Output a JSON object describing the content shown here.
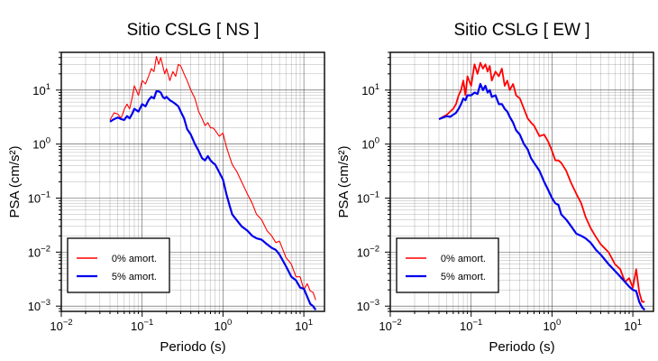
{
  "chart_data": [
    {
      "type": "line",
      "title": "Sitio CSLG [ NS ]",
      "xlabel": "Periodo (s)",
      "ylabel": "PSA (cm/s²)",
      "xscale": "log",
      "yscale": "log",
      "xlim": [
        0.01,
        18
      ],
      "ylim": [
        0.0008,
        50
      ],
      "xticks": [
        {
          "value": 0.01,
          "base": "10",
          "exp": "−2"
        },
        {
          "value": 0.1,
          "base": "10",
          "exp": "−1"
        },
        {
          "value": 1,
          "base": "10",
          "exp": "0"
        },
        {
          "value": 10,
          "base": "10",
          "exp": "1"
        }
      ],
      "yticks": [
        {
          "value": 0.001,
          "base": "10",
          "exp": "−3"
        },
        {
          "value": 0.01,
          "base": "10",
          "exp": "−2"
        },
        {
          "value": 0.1,
          "base": "10",
          "exp": "−1"
        },
        {
          "value": 1,
          "base": "10",
          "exp": "0"
        },
        {
          "value": 10,
          "base": "10",
          "exp": "1"
        }
      ],
      "grid": true,
      "legend_position": "bottom-left",
      "series": [
        {
          "name": "0% amort.",
          "color": "#ff0000",
          "x": [
            0.04,
            0.045,
            0.05,
            0.055,
            0.06,
            0.065,
            0.07,
            0.075,
            0.08,
            0.09,
            0.1,
            0.11,
            0.12,
            0.13,
            0.14,
            0.15,
            0.16,
            0.17,
            0.18,
            0.19,
            0.2,
            0.22,
            0.24,
            0.26,
            0.28,
            0.3,
            0.33,
            0.36,
            0.4,
            0.45,
            0.5,
            0.55,
            0.6,
            0.65,
            0.7,
            0.75,
            0.8,
            0.9,
            1.0,
            1.1,
            1.2,
            1.3,
            1.5,
            1.7,
            2.0,
            2.3,
            2.6,
            3.0,
            3.5,
            4.0,
            4.5,
            5.0,
            6.0,
            7.0,
            8.0,
            9.0,
            10.0,
            11.0,
            12.0,
            13.0,
            14.0
          ],
          "y": [
            2.8,
            3.8,
            3.6,
            3.0,
            4.4,
            5.5,
            4.5,
            7.0,
            12.0,
            8.0,
            15.0,
            13.0,
            18.0,
            25.0,
            22.0,
            42.0,
            30.0,
            40.0,
            28.0,
            20.0,
            25.0,
            15.0,
            22.0,
            18.0,
            30.0,
            28.0,
            20.0,
            15.0,
            10.0,
            7.0,
            4.0,
            3.0,
            2.2,
            2.5,
            2.0,
            2.0,
            1.8,
            1.4,
            1.6,
            0.9,
            0.6,
            0.42,
            0.3,
            0.2,
            0.12,
            0.08,
            0.05,
            0.04,
            0.025,
            0.02,
            0.015,
            0.016,
            0.008,
            0.006,
            0.0035,
            0.0035,
            0.002,
            0.0026,
            0.0019,
            0.0018,
            0.0013
          ]
        },
        {
          "name": "5% amort.",
          "color": "#0000ee",
          "x": [
            0.04,
            0.045,
            0.05,
            0.055,
            0.06,
            0.065,
            0.07,
            0.075,
            0.08,
            0.09,
            0.1,
            0.11,
            0.12,
            0.13,
            0.14,
            0.15,
            0.16,
            0.17,
            0.18,
            0.19,
            0.2,
            0.22,
            0.24,
            0.26,
            0.28,
            0.3,
            0.33,
            0.36,
            0.4,
            0.45,
            0.5,
            0.55,
            0.6,
            0.65,
            0.7,
            0.75,
            0.8,
            0.9,
            1.0,
            1.1,
            1.2,
            1.3,
            1.5,
            1.7,
            2.0,
            2.3,
            2.6,
            3.0,
            3.5,
            4.0,
            4.5,
            5.0,
            6.0,
            7.0,
            8.0,
            9.0,
            10.0,
            11.0,
            12.0,
            13.0,
            14.0
          ],
          "y": [
            2.6,
            2.9,
            3.1,
            2.9,
            2.8,
            3.3,
            3.0,
            3.6,
            4.5,
            4.0,
            5.5,
            5.0,
            6.5,
            7.5,
            7.0,
            9.5,
            9.5,
            9.0,
            7.5,
            7.0,
            7.5,
            6.5,
            6.0,
            5.5,
            5.0,
            4.0,
            3.0,
            1.9,
            1.5,
            1.0,
            0.75,
            0.55,
            0.5,
            0.6,
            0.5,
            0.45,
            0.42,
            0.3,
            0.22,
            0.12,
            0.075,
            0.05,
            0.038,
            0.03,
            0.025,
            0.02,
            0.018,
            0.017,
            0.014,
            0.012,
            0.011,
            0.009,
            0.0055,
            0.0035,
            0.003,
            0.0022,
            0.0021,
            0.0015,
            0.0011,
            0.001,
            0.00085
          ]
        }
      ]
    },
    {
      "type": "line",
      "title": "Sitio CSLG [ EW ]",
      "xlabel": "Periodo (s)",
      "ylabel": "PSA (cm/s²)",
      "xscale": "log",
      "yscale": "log",
      "xlim": [
        0.01,
        18
      ],
      "ylim": [
        0.0008,
        50
      ],
      "xticks": [
        {
          "value": 0.01,
          "base": "10",
          "exp": "−2"
        },
        {
          "value": 0.1,
          "base": "10",
          "exp": "−1"
        },
        {
          "value": 1,
          "base": "10",
          "exp": "0"
        },
        {
          "value": 10,
          "base": "10",
          "exp": "1"
        }
      ],
      "yticks": [
        {
          "value": 0.001,
          "base": "10",
          "exp": "−3"
        },
        {
          "value": 0.01,
          "base": "10",
          "exp": "−2"
        },
        {
          "value": 0.1,
          "base": "10",
          "exp": "−1"
        },
        {
          "value": 1,
          "base": "10",
          "exp": "0"
        },
        {
          "value": 10,
          "base": "10",
          "exp": "1"
        }
      ],
      "grid": true,
      "legend_position": "bottom-left",
      "series": [
        {
          "name": "0% amort.",
          "color": "#ff0000",
          "x": [
            0.04,
            0.045,
            0.05,
            0.055,
            0.06,
            0.065,
            0.07,
            0.075,
            0.08,
            0.085,
            0.09,
            0.1,
            0.11,
            0.12,
            0.13,
            0.14,
            0.15,
            0.16,
            0.17,
            0.18,
            0.2,
            0.22,
            0.24,
            0.26,
            0.28,
            0.3,
            0.33,
            0.36,
            0.4,
            0.45,
            0.5,
            0.55,
            0.6,
            0.7,
            0.8,
            0.9,
            1.0,
            1.1,
            1.2,
            1.3,
            1.5,
            1.7,
            2.0,
            2.3,
            2.6,
            3.0,
            3.5,
            4.0,
            5.0,
            6.0,
            7.0,
            8.0,
            9.0,
            10.0,
            11.0,
            12.0,
            13.0,
            14.0
          ],
          "y": [
            2.9,
            3.2,
            3.5,
            4.0,
            4.5,
            5.5,
            8.0,
            10.0,
            15.0,
            8.0,
            18.0,
            12.0,
            30.0,
            20.0,
            32.0,
            25.0,
            30.0,
            22.0,
            28.0,
            15.0,
            22.0,
            18.0,
            25.0,
            12.0,
            15.0,
            10.0,
            13.0,
            8.0,
            7.0,
            4.5,
            3.0,
            2.5,
            2.2,
            1.4,
            1.5,
            1.1,
            0.75,
            0.5,
            0.5,
            0.45,
            0.32,
            0.2,
            0.12,
            0.08,
            0.045,
            0.028,
            0.019,
            0.014,
            0.01,
            0.006,
            0.0048,
            0.0028,
            0.0033,
            0.0022,
            0.0048,
            0.0018,
            0.0012,
            0.0012
          ]
        },
        {
          "name": "5% amort.",
          "color": "#0000ee",
          "x": [
            0.04,
            0.045,
            0.05,
            0.055,
            0.06,
            0.065,
            0.07,
            0.075,
            0.08,
            0.085,
            0.09,
            0.1,
            0.11,
            0.12,
            0.13,
            0.14,
            0.15,
            0.16,
            0.17,
            0.18,
            0.2,
            0.22,
            0.24,
            0.26,
            0.28,
            0.3,
            0.33,
            0.36,
            0.4,
            0.45,
            0.5,
            0.55,
            0.6,
            0.7,
            0.8,
            0.9,
            1.0,
            1.1,
            1.2,
            1.3,
            1.5,
            1.7,
            2.0,
            2.3,
            2.6,
            3.0,
            3.5,
            4.0,
            5.0,
            6.0,
            7.0,
            8.0,
            9.0,
            10.0,
            11.0,
            12.0,
            13.0,
            14.0
          ],
          "y": [
            2.9,
            3.1,
            3.3,
            3.2,
            3.5,
            3.8,
            4.5,
            5.5,
            7.0,
            6.5,
            8.0,
            8.0,
            9.0,
            8.5,
            13.0,
            10.0,
            12.0,
            9.0,
            10.0,
            7.5,
            8.0,
            5.5,
            5.5,
            4.5,
            4.0,
            3.2,
            2.5,
            1.8,
            1.5,
            1.0,
            0.8,
            0.55,
            0.45,
            0.32,
            0.2,
            0.14,
            0.1,
            0.08,
            0.075,
            0.05,
            0.04,
            0.031,
            0.022,
            0.02,
            0.018,
            0.015,
            0.011,
            0.009,
            0.006,
            0.0045,
            0.0035,
            0.0028,
            0.0023,
            0.002,
            0.0019,
            0.0012,
            0.00095,
            0.00085
          ]
        }
      ]
    }
  ]
}
